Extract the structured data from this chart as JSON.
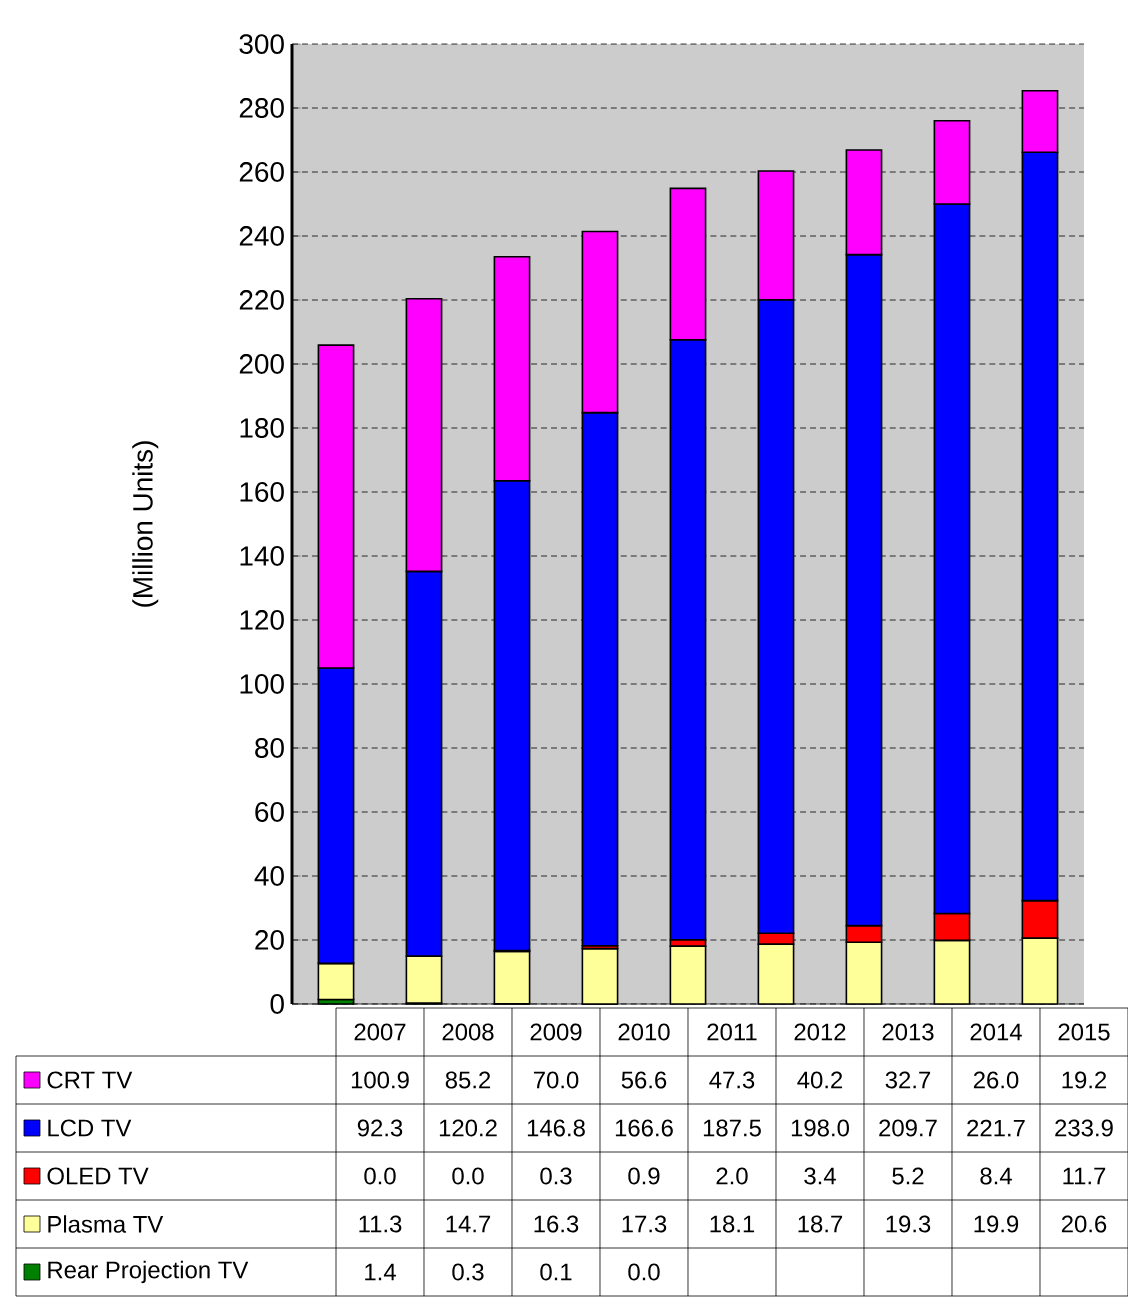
{
  "chart_data": {
    "type": "bar",
    "stacked": true,
    "ylabel": "(Million Units)",
    "categories": [
      "2007",
      "2008",
      "2009",
      "2010",
      "2011",
      "2012",
      "2013",
      "2014",
      "2015"
    ],
    "series": [
      {
        "name": "Rear Projection TV",
        "color": "#008000",
        "values": [
          1.4,
          0.3,
          0.1,
          0.0,
          null,
          null,
          null,
          null,
          null
        ],
        "value_labels": [
          "1.4",
          "0.3",
          "0.1",
          "0.0",
          null,
          null,
          null,
          null,
          null
        ]
      },
      {
        "name": "Plasma  TV",
        "color": "#ffff99",
        "values": [
          11.3,
          14.7,
          16.3,
          17.3,
          18.1,
          18.7,
          19.3,
          19.9,
          20.6
        ],
        "value_labels": [
          "11.3",
          "14.7",
          "16.3",
          "17.3",
          "18.1",
          "18.7",
          "19.3",
          "19.9",
          "20.6"
        ]
      },
      {
        "name": "OLED TV",
        "color": "#ff0000",
        "values": [
          0.0,
          0.0,
          0.3,
          0.9,
          2.0,
          3.4,
          5.2,
          8.4,
          11.7
        ],
        "value_labels": [
          "0.0",
          "0.0",
          "0.3",
          "0.9",
          "2.0",
          "3.4",
          "5.2",
          "8.4",
          "11.7"
        ]
      },
      {
        "name": "LCD TV",
        "color": "#0000ff",
        "values": [
          92.3,
          120.2,
          146.8,
          166.6,
          187.5,
          198.0,
          209.7,
          221.7,
          233.9
        ],
        "value_labels": [
          "92.3",
          "120.2",
          "146.8",
          "166.6",
          "187.5",
          "198.0",
          "209.7",
          "221.7",
          "233.9"
        ]
      },
      {
        "name": "CRT TV",
        "color": "#ff00ff",
        "values": [
          100.9,
          85.2,
          70.0,
          56.6,
          47.3,
          40.2,
          32.7,
          26.0,
          19.2
        ],
        "value_labels": [
          "100.9",
          "85.2",
          "70.0",
          "56.6",
          "47.3",
          "40.2",
          "32.7",
          "26.0",
          "19.2"
        ]
      }
    ],
    "ylim": [
      0,
      300
    ],
    "yticks": [
      0,
      20,
      40,
      60,
      80,
      100,
      120,
      140,
      160,
      180,
      200,
      220,
      240,
      260,
      280,
      300
    ],
    "grid": "y",
    "legend": "bottom"
  }
}
